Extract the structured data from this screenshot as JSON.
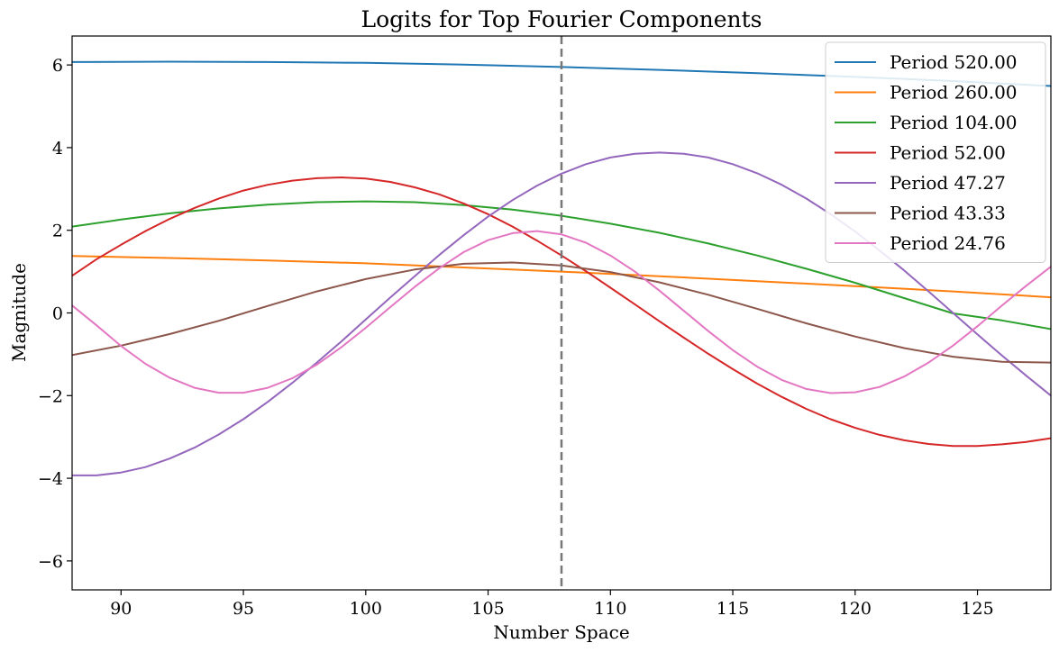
{
  "chart_data": {
    "type": "line",
    "title": "Logits for Top Fourier Components",
    "xlabel": "Number Space",
    "ylabel": "Magnitude",
    "xlim": [
      88,
      128
    ],
    "ylim": [
      -6.7,
      6.7
    ],
    "xticks": [
      90,
      95,
      100,
      105,
      110,
      115,
      120,
      125
    ],
    "yticks": [
      -6,
      -4,
      -2,
      0,
      2,
      4,
      6
    ],
    "ytick_labels": [
      "−6",
      "−4",
      "−2",
      "0",
      "2",
      "4",
      "6"
    ],
    "grid": false,
    "legend_position": "top-right",
    "reference_line": {
      "x": 108,
      "style": "dashed",
      "color": "#777777"
    },
    "series": [
      {
        "name": "Period 520.00",
        "color": "#1f77b4",
        "points": [
          [
            88,
            6.07
          ],
          [
            92,
            6.08
          ],
          [
            96,
            6.07
          ],
          [
            100,
            6.05
          ],
          [
            104,
            6.01
          ],
          [
            108,
            5.95
          ],
          [
            112,
            5.88
          ],
          [
            116,
            5.8
          ],
          [
            120,
            5.71
          ],
          [
            124,
            5.61
          ],
          [
            128,
            5.49
          ]
        ]
      },
      {
        "name": "Period 260.00",
        "color": "#ff7f0e",
        "points": [
          [
            88,
            1.38
          ],
          [
            92,
            1.33
          ],
          [
            96,
            1.27
          ],
          [
            100,
            1.2
          ],
          [
            104,
            1.1
          ],
          [
            108,
            1.0
          ],
          [
            112,
            0.89
          ],
          [
            116,
            0.77
          ],
          [
            120,
            0.65
          ],
          [
            124,
            0.52
          ],
          [
            128,
            0.38
          ]
        ]
      },
      {
        "name": "Period 104.00",
        "color": "#2ca02c",
        "points": [
          [
            88,
            2.09
          ],
          [
            90,
            2.26
          ],
          [
            92,
            2.41
          ],
          [
            94,
            2.53
          ],
          [
            96,
            2.62
          ],
          [
            98,
            2.68
          ],
          [
            100,
            2.7
          ],
          [
            102,
            2.68
          ],
          [
            104,
            2.61
          ],
          [
            106,
            2.5
          ],
          [
            108,
            2.35
          ],
          [
            110,
            2.16
          ],
          [
            112,
            1.94
          ],
          [
            114,
            1.68
          ],
          [
            116,
            1.39
          ],
          [
            118,
            1.07
          ],
          [
            120,
            0.73
          ],
          [
            122,
            0.36
          ],
          [
            124,
            -0.01
          ],
          [
            126,
            -0.18
          ],
          [
            128,
            -0.39
          ]
        ]
      },
      {
        "name": "Period 52.00",
        "color": "#d62728",
        "points": [
          [
            88,
            0.9
          ],
          [
            89,
            1.3
          ],
          [
            90,
            1.65
          ],
          [
            91,
            1.98
          ],
          [
            92,
            2.28
          ],
          [
            93,
            2.54
          ],
          [
            94,
            2.77
          ],
          [
            95,
            2.96
          ],
          [
            96,
            3.1
          ],
          [
            97,
            3.2
          ],
          [
            98,
            3.26
          ],
          [
            99,
            3.28
          ],
          [
            100,
            3.25
          ],
          [
            101,
            3.17
          ],
          [
            102,
            3.04
          ],
          [
            103,
            2.87
          ],
          [
            104,
            2.65
          ],
          [
            105,
            2.39
          ],
          [
            106,
            2.09
          ],
          [
            107,
            1.75
          ],
          [
            108,
            1.39
          ],
          [
            109,
            1.01
          ],
          [
            110,
            0.61
          ],
          [
            111,
            0.21
          ],
          [
            112,
            -0.2
          ],
          [
            113,
            -0.6
          ],
          [
            114,
            -0.99
          ],
          [
            115,
            -1.36
          ],
          [
            116,
            -1.71
          ],
          [
            117,
            -2.03
          ],
          [
            118,
            -2.32
          ],
          [
            119,
            -2.57
          ],
          [
            120,
            -2.78
          ],
          [
            121,
            -2.95
          ],
          [
            122,
            -3.08
          ],
          [
            123,
            -3.17
          ],
          [
            124,
            -3.22
          ],
          [
            125,
            -3.22
          ],
          [
            126,
            -3.18
          ],
          [
            127,
            -3.12
          ],
          [
            128,
            -3.03
          ]
        ]
      },
      {
        "name": "Period 47.27",
        "color": "#9467bd",
        "points": [
          [
            88,
            -3.93
          ],
          [
            89,
            -3.93
          ],
          [
            90,
            -3.86
          ],
          [
            91,
            -3.73
          ],
          [
            92,
            -3.52
          ],
          [
            93,
            -3.26
          ],
          [
            94,
            -2.94
          ],
          [
            95,
            -2.57
          ],
          [
            96,
            -2.15
          ],
          [
            97,
            -1.69
          ],
          [
            98,
            -1.2
          ],
          [
            99,
            -0.69
          ],
          [
            100,
            -0.16
          ],
          [
            101,
            0.37
          ],
          [
            102,
            0.89
          ],
          [
            103,
            1.4
          ],
          [
            104,
            1.88
          ],
          [
            105,
            2.33
          ],
          [
            106,
            2.73
          ],
          [
            107,
            3.08
          ],
          [
            108,
            3.37
          ],
          [
            109,
            3.6
          ],
          [
            110,
            3.76
          ],
          [
            111,
            3.85
          ],
          [
            112,
            3.88
          ],
          [
            113,
            3.85
          ],
          [
            114,
            3.76
          ],
          [
            115,
            3.6
          ],
          [
            116,
            3.38
          ],
          [
            117,
            3.1
          ],
          [
            118,
            2.77
          ],
          [
            119,
            2.39
          ],
          [
            120,
            1.97
          ],
          [
            121,
            1.51
          ],
          [
            122,
            1.03
          ],
          [
            123,
            0.52
          ],
          [
            124,
            0.0
          ],
          [
            125,
            -0.52
          ],
          [
            126,
            -1.03
          ],
          [
            127,
            -1.52
          ],
          [
            128,
            -2.0
          ]
        ]
      },
      {
        "name": "Period 43.33",
        "color": "#8c564b",
        "points": [
          [
            88,
            -1.02
          ],
          [
            90,
            -0.79
          ],
          [
            92,
            -0.51
          ],
          [
            94,
            -0.19
          ],
          [
            96,
            0.17
          ],
          [
            98,
            0.52
          ],
          [
            100,
            0.82
          ],
          [
            102,
            1.05
          ],
          [
            104,
            1.19
          ],
          [
            106,
            1.22
          ],
          [
            108,
            1.15
          ],
          [
            110,
            0.99
          ],
          [
            112,
            0.74
          ],
          [
            114,
            0.44
          ],
          [
            116,
            0.1
          ],
          [
            118,
            -0.25
          ],
          [
            120,
            -0.57
          ],
          [
            122,
            -0.85
          ],
          [
            124,
            -1.06
          ],
          [
            126,
            -1.18
          ],
          [
            128,
            -1.2
          ]
        ]
      },
      {
        "name": "Period 24.76",
        "color": "#e377c2",
        "points": [
          [
            88,
            0.18
          ],
          [
            89,
            -0.3
          ],
          [
            90,
            -0.8
          ],
          [
            91,
            -1.23
          ],
          [
            92,
            -1.57
          ],
          [
            93,
            -1.81
          ],
          [
            94,
            -1.93
          ],
          [
            95,
            -1.93
          ],
          [
            96,
            -1.81
          ],
          [
            97,
            -1.58
          ],
          [
            98,
            -1.25
          ],
          [
            99,
            -0.83
          ],
          [
            100,
            -0.36
          ],
          [
            101,
            0.14
          ],
          [
            102,
            0.63
          ],
          [
            103,
            1.08
          ],
          [
            104,
            1.47
          ],
          [
            105,
            1.76
          ],
          [
            106,
            1.93
          ],
          [
            107,
            1.98
          ],
          [
            108,
            1.9
          ],
          [
            109,
            1.7
          ],
          [
            110,
            1.39
          ],
          [
            111,
            1.0
          ],
          [
            112,
            0.54
          ],
          [
            113,
            0.05
          ],
          [
            114,
            -0.44
          ],
          [
            115,
            -0.9
          ],
          [
            116,
            -1.3
          ],
          [
            117,
            -1.62
          ],
          [
            118,
            -1.84
          ],
          [
            119,
            -1.94
          ],
          [
            120,
            -1.92
          ],
          [
            121,
            -1.79
          ],
          [
            122,
            -1.54
          ],
          [
            123,
            -1.2
          ],
          [
            124,
            -0.79
          ],
          [
            125,
            -0.32
          ],
          [
            126,
            0.18
          ],
          [
            127,
            0.66
          ],
          [
            128,
            1.12
          ]
        ]
      }
    ]
  }
}
